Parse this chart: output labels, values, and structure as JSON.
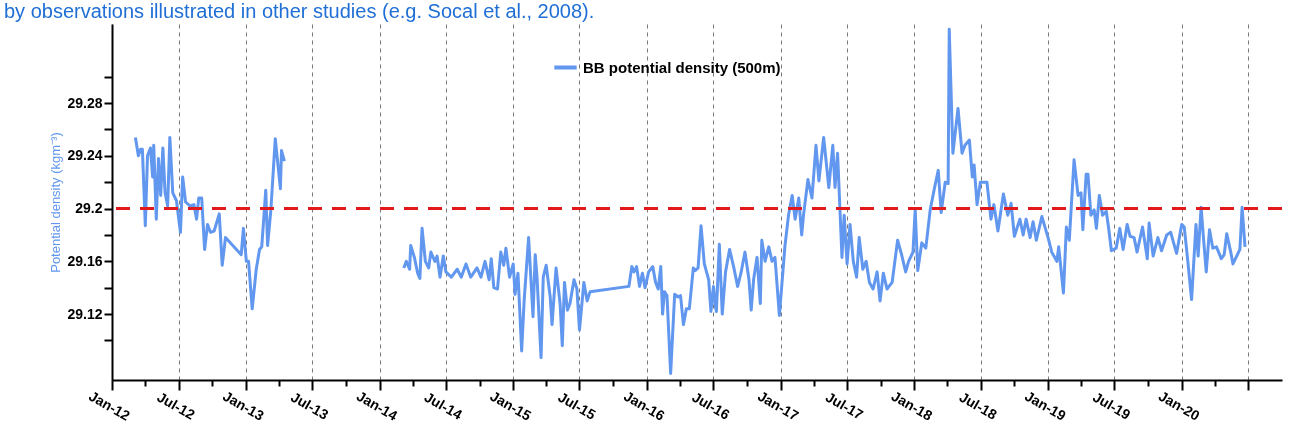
{
  "chart_data": {
    "type": "line",
    "ylabel": "Potential density (kgm⁻³)",
    "annotations": [
      "by observations illustrated in other studies (e.g. Socal et al., 2008)."
    ],
    "legend": "top",
    "grid": "x",
    "marker": "none",
    "line_style": "solid",
    "xlim": [
      "2012-01-01",
      "2020-10-01"
    ],
    "xticks": [
      {
        "value": "2012-01",
        "label": "Jan-12"
      },
      {
        "value": "2012-04",
        "label": null
      },
      {
        "value": "2012-07",
        "label": "Jul-12"
      },
      {
        "value": "2012-10",
        "label": null
      },
      {
        "value": "2013-01",
        "label": "Jan-13"
      },
      {
        "value": "2013-04",
        "label": null
      },
      {
        "value": "2013-07",
        "label": "Jul-13"
      },
      {
        "value": "2013-10",
        "label": null
      },
      {
        "value": "2014-01",
        "label": "Jan-14"
      },
      {
        "value": "2014-04",
        "label": null
      },
      {
        "value": "2014-07",
        "label": "Jul-14"
      },
      {
        "value": "2014-10",
        "label": null
      },
      {
        "value": "2015-01",
        "label": "Jan-15"
      },
      {
        "value": "2015-04",
        "label": null
      },
      {
        "value": "2015-07",
        "label": "Jul-15"
      },
      {
        "value": "2015-10",
        "label": null
      },
      {
        "value": "2016-01",
        "label": "Jan-16"
      },
      {
        "value": "2016-04",
        "label": null
      },
      {
        "value": "2016-07",
        "label": "Jul-16"
      },
      {
        "value": "2016-10",
        "label": null
      },
      {
        "value": "2017-01",
        "label": "Jan-17"
      },
      {
        "value": "2017-04",
        "label": null
      },
      {
        "value": "2017-07",
        "label": "Jul-17"
      },
      {
        "value": "2017-10",
        "label": null
      },
      {
        "value": "2018-01",
        "label": "Jan-18"
      },
      {
        "value": "2018-04",
        "label": null
      },
      {
        "value": "2018-07",
        "label": "Jul-18"
      },
      {
        "value": "2018-10",
        "label": null
      },
      {
        "value": "2019-01",
        "label": "Jan-19"
      },
      {
        "value": "2019-04",
        "label": null
      },
      {
        "value": "2019-07",
        "label": "Jul-19"
      },
      {
        "value": "2019-10",
        "label": null
      },
      {
        "value": "2020-01",
        "label": "Jan-20"
      },
      {
        "value": "2020-04",
        "label": null
      },
      {
        "value": "2020-07",
        "label": null
      }
    ],
    "ylim": [
      29.07,
      29.34
    ],
    "yticks": [
      {
        "value": 29.1,
        "label": null
      },
      29.12,
      {
        "value": 29.14,
        "label": null
      },
      29.16,
      {
        "value": 29.18,
        "label": null
      },
      29.2,
      {
        "value": 29.22,
        "label": null
      },
      29.24,
      {
        "value": 29.26,
        "label": null
      },
      29.28,
      {
        "value": 29.3,
        "label": null
      }
    ],
    "ref_lines": [
      {
        "axis": "y",
        "value": 29.2,
        "color": "#e31a1c",
        "line_style": "dashed"
      }
    ],
    "x": [
      "2012-03-05",
      "2012-03-13",
      "2012-03-19",
      "2012-03-24",
      "2012-04-01",
      "2012-04-07",
      "2012-04-15",
      "2012-04-21",
      "2012-04-24",
      "2012-05-01",
      "2012-05-07",
      "2012-05-13",
      "2012-05-19",
      "2012-05-25",
      "2012-06-01",
      "2012-06-07",
      "2012-06-15",
      "2012-06-25",
      "2012-07-06",
      "2012-07-12",
      "2012-07-20",
      "2012-08-01",
      "2012-08-12",
      "2012-08-19",
      "2012-08-25",
      "2012-09-02",
      "2012-09-10",
      "2012-09-18",
      "2012-09-26",
      "2012-10-06",
      "2012-10-20",
      "2012-10-28",
      "2012-11-06",
      "2012-12-19",
      "2012-12-25",
      "2013-01-02",
      "2013-01-08",
      "2013-01-18",
      "2013-01-29",
      "2013-02-07",
      "2013-02-13",
      "2013-02-24",
      "2013-03-01",
      "2013-03-10",
      "2013-03-22",
      "2013-04-05",
      "2013-04-08",
      "2013-04-16",
      "2013-09-01",
      "2014-03-08",
      "2014-03-15",
      "2014-03-24",
      "2014-03-27",
      "2014-04-06",
      "2014-04-15",
      "2014-04-21",
      "2014-04-27",
      "2014-05-06",
      "2014-05-15",
      "2014-05-21",
      "2014-06-01",
      "2014-06-07",
      "2014-06-15",
      "2014-06-24",
      "2014-07-01",
      "2014-07-16",
      "2014-08-01",
      "2014-08-12",
      "2014-08-25",
      "2014-09-07",
      "2014-09-24",
      "2014-10-05",
      "2014-10-16",
      "2014-10-27",
      "2014-11-02",
      "2014-11-09",
      "2014-11-19",
      "2014-11-28",
      "2014-12-06",
      "2014-12-12",
      "2014-12-22",
      "2015-01-01",
      "2015-01-06",
      "2015-01-14",
      "2015-01-24",
      "2015-01-31",
      "2015-02-12",
      "2015-02-24",
      "2015-03-02",
      "2015-03-07",
      "2015-03-18",
      "2015-03-24",
      "2015-04-01",
      "2015-04-12",
      "2015-04-17",
      "2015-04-28",
      "2015-05-09",
      "2015-05-15",
      "2015-05-21",
      "2015-05-29",
      "2015-06-05",
      "2015-06-16",
      "2015-06-24",
      "2015-07-01",
      "2015-07-13",
      "2015-07-22",
      "2015-07-30",
      "2015-11-13",
      "2015-11-21",
      "2015-11-27",
      "2015-12-04",
      "2015-12-12",
      "2015-12-20",
      "2015-12-27",
      "2016-01-06",
      "2016-01-17",
      "2016-01-25",
      "2016-02-01",
      "2016-02-08",
      "2016-02-13",
      "2016-02-18",
      "2016-02-25",
      "2016-03-06",
      "2016-03-17",
      "2016-03-27",
      "2016-04-02",
      "2016-04-10",
      "2016-04-18",
      "2016-04-26",
      "2016-05-07",
      "2016-05-12",
      "2016-05-20",
      "2016-05-28",
      "2016-06-06",
      "2016-06-18",
      "2016-06-24",
      "2016-07-01",
      "2016-07-06",
      "2016-07-09",
      "2016-07-17",
      "2016-07-25",
      "2016-08-03",
      "2016-08-14",
      "2016-08-25",
      "2016-09-05",
      "2016-09-14",
      "2016-09-25",
      "2016-10-06",
      "2016-10-12",
      "2016-10-19",
      "2016-10-28",
      "2016-11-06",
      "2016-11-10",
      "2016-11-19",
      "2016-11-29",
      "2016-12-08",
      "2016-12-16",
      "2016-12-28",
      "2017-01-06",
      "2017-01-12",
      "2017-01-22",
      "2017-02-01",
      "2017-02-09",
      "2017-02-19",
      "2017-02-27",
      "2017-03-04",
      "2017-03-16",
      "2017-03-27",
      "2017-04-07",
      "2017-04-15",
      "2017-04-28",
      "2017-05-12",
      "2017-05-23",
      "2017-05-29",
      "2017-06-05",
      "2017-06-17",
      "2017-06-23",
      "2017-07-01",
      "2017-07-09",
      "2017-07-18",
      "2017-07-27",
      "2017-08-03",
      "2017-08-13",
      "2017-08-22",
      "2017-08-31",
      "2017-09-10",
      "2017-09-21",
      "2017-09-29",
      "2017-10-08",
      "2017-10-18",
      "2017-11-01",
      "2017-11-16",
      "2017-11-27",
      "2017-12-08",
      "2017-12-16",
      "2017-12-28",
      "2018-01-03",
      "2018-01-10",
      "2018-01-21",
      "2018-02-01",
      "2018-02-13",
      "2018-02-25",
      "2018-03-07",
      "2018-03-15",
      "2018-03-26",
      "2018-04-03",
      "2018-04-06",
      "2018-04-16",
      "2018-04-30",
      "2018-05-11",
      "2018-05-19",
      "2018-05-31",
      "2018-06-08",
      "2018-06-13",
      "2018-06-21",
      "2018-06-30",
      "2018-07-18",
      "2018-07-29",
      "2018-08-06",
      "2018-08-17",
      "2018-09-01",
      "2018-09-13",
      "2018-09-22",
      "2018-10-01",
      "2018-10-16",
      "2018-10-25",
      "2018-11-02",
      "2018-11-13",
      "2018-11-21",
      "2018-11-30",
      "2018-12-15",
      "2019-01-01",
      "2019-01-11",
      "2019-01-25",
      "2019-01-30",
      "2019-02-12",
      "2019-02-20",
      "2019-02-28",
      "2019-03-13",
      "2019-03-24",
      "2019-04-01",
      "2019-04-06",
      "2019-04-15",
      "2019-04-20",
      "2019-04-28",
      "2019-05-07",
      "2019-05-13",
      "2019-05-21",
      "2019-05-30",
      "2019-06-09",
      "2019-06-16",
      "2019-06-23",
      "2019-07-06",
      "2019-07-16",
      "2019-07-25",
      "2019-08-05",
      "2019-08-13",
      "2019-08-24",
      "2019-09-01",
      "2019-09-16",
      "2019-09-29",
      "2019-10-04",
      "2019-10-15",
      "2019-10-28",
      "2019-11-07",
      "2019-11-21",
      "2019-12-02",
      "2019-12-13",
      "2019-12-18",
      "2020-01-01",
      "2020-01-08",
      "2020-01-17",
      "2020-01-28",
      "2020-02-09",
      "2020-02-15",
      "2020-02-23",
      "2020-03-01",
      "2020-03-08",
      "2020-03-17",
      "2020-03-26",
      "2020-04-05",
      "2020-04-18",
      "2020-04-26",
      "2020-05-03",
      "2020-05-14",
      "2020-05-20",
      "2020-06-01",
      "2020-06-08",
      "2020-06-14",
      "2020-06-22"
    ],
    "series": [
      {
        "name": "BB potential density (500m)",
        "color": "#6197ee",
        "values": [
          29.254,
          29.24,
          29.245,
          29.245,
          29.187,
          29.24,
          29.246,
          29.224,
          29.248,
          29.192,
          29.238,
          29.21,
          29.246,
          29.212,
          29.202,
          29.254,
          29.212,
          29.206,
          29.182,
          29.224,
          29.205,
          29.202,
          29.203,
          29.192,
          29.208,
          29.208,
          29.169,
          29.188,
          29.182,
          29.183,
          29.196,
          29.157,
          29.178,
          29.165,
          29.185,
          29.16,
          29.16,
          29.124,
          29.154,
          29.169,
          29.171,
          29.214,
          29.172,
          29.199,
          29.253,
          29.215,
          29.244,
          29.236,
          null,
          29.155,
          29.16,
          29.154,
          29.172,
          29.163,
          29.151,
          29.147,
          29.185,
          29.16,
          29.155,
          29.167,
          29.16,
          29.164,
          29.148,
          29.164,
          29.152,
          29.148,
          29.154,
          29.148,
          29.158,
          29.148,
          29.155,
          29.148,
          29.16,
          29.146,
          29.162,
          29.14,
          29.139,
          29.167,
          29.157,
          29.17,
          29.148,
          29.158,
          29.135,
          29.151,
          29.092,
          29.131,
          29.178,
          29.118,
          29.165,
          29.148,
          29.087,
          29.148,
          29.157,
          29.133,
          29.112,
          29.155,
          29.128,
          29.096,
          29.144,
          29.123,
          29.128,
          29.146,
          29.139,
          29.108,
          29.144,
          29.13,
          29.137,
          29.141,
          29.156,
          29.152,
          29.156,
          29.141,
          29.151,
          29.14,
          29.152,
          29.156,
          29.144,
          29.139,
          29.156,
          29.12,
          29.137,
          29.134,
          29.075,
          29.135,
          29.133,
          29.134,
          29.112,
          29.124,
          29.124,
          29.155,
          29.153,
          29.155,
          29.187,
          29.158,
          29.146,
          29.122,
          29.141,
          29.126,
          29.122,
          29.173,
          29.12,
          29.152,
          29.169,
          29.156,
          29.141,
          29.151,
          29.167,
          29.146,
          29.123,
          29.147,
          29.163,
          29.128,
          29.176,
          29.16,
          29.171,
          29.16,
          29.163,
          29.119,
          29.15,
          29.171,
          29.195,
          29.21,
          29.192,
          29.208,
          29.18,
          29.195,
          29.222,
          29.208,
          29.248,
          29.221,
          29.254,
          29.216,
          29.248,
          29.216,
          29.242,
          29.163,
          29.195,
          29.158,
          29.188,
          29.16,
          29.148,
          29.178,
          29.154,
          29.16,
          29.144,
          29.139,
          29.152,
          29.13,
          29.151,
          29.139,
          29.144,
          29.176,
          29.165,
          29.152,
          29.16,
          29.167,
          29.199,
          29.153,
          29.174,
          29.17,
          29.199,
          29.216,
          29.229,
          29.197,
          29.22,
          29.219,
          29.336,
          29.242,
          29.276,
          29.242,
          29.248,
          29.252,
          29.224,
          29.233,
          29.203,
          29.22,
          29.22,
          29.192,
          29.203,
          29.183,
          29.211,
          29.195,
          29.204,
          29.179,
          29.192,
          29.18,
          29.192,
          29.178,
          29.19,
          29.176,
          29.194,
          29.178,
          29.167,
          29.16,
          29.171,
          29.136,
          29.186,
          29.176,
          29.237,
          29.21,
          29.212,
          29.184,
          29.226,
          29.226,
          29.195,
          29.199,
          29.185,
          29.21,
          29.195,
          29.198,
          29.184,
          29.168,
          29.17,
          29.185,
          29.169,
          29.188,
          29.179,
          29.178,
          29.167,
          29.186,
          29.162,
          29.189,
          29.164,
          29.178,
          29.168,
          29.18,
          29.182,
          29.171,
          29.166,
          29.188,
          29.186,
          29.162,
          29.131,
          29.188,
          29.164,
          29.201,
          29.176,
          29.152,
          29.184,
          29.17,
          29.171,
          29.162,
          29.165,
          29.181,
          29.167,
          29.158,
          29.165,
          29.169,
          29.201,
          29.171
        ]
      }
    ]
  }
}
